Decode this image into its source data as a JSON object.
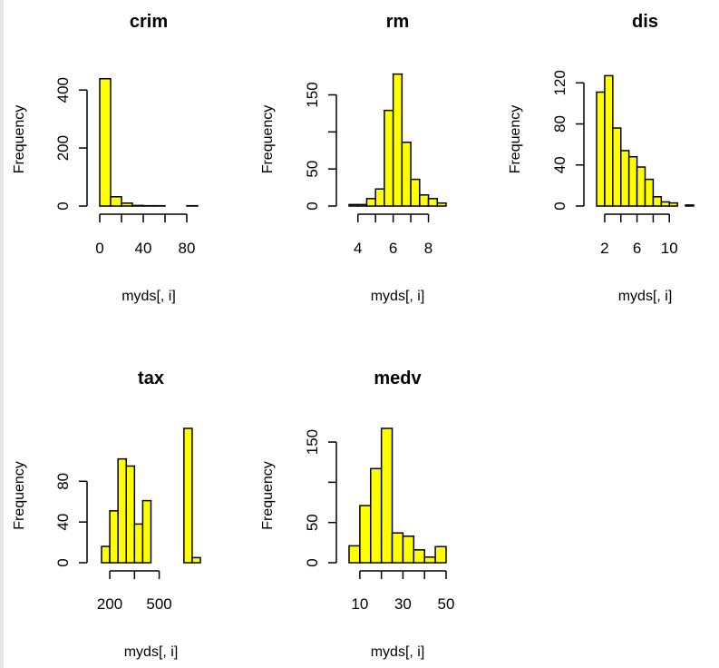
{
  "chart_data": [
    {
      "type": "bar",
      "title": "crim",
      "xlabel": "myds[, i]",
      "ylabel": "Frequency",
      "bin_edges": [
        0,
        10,
        20,
        30,
        40,
        50,
        60,
        70,
        80,
        90
      ],
      "values": [
        439,
        32,
        10,
        2,
        1,
        1,
        0,
        0,
        1
      ],
      "xticks": [
        0,
        40,
        80
      ],
      "yticks": [
        0,
        200,
        400
      ],
      "xlim": [
        0,
        90
      ],
      "ylim": [
        0,
        460
      ],
      "fill": "#ffff00"
    },
    {
      "type": "bar",
      "title": "rm",
      "xlabel": "myds[, i]",
      "ylabel": "Frequency",
      "bin_edges": [
        3.5,
        4,
        4.5,
        5,
        5.5,
        6,
        6.5,
        7,
        7.5,
        8,
        8.5,
        9
      ],
      "values": [
        2,
        2,
        10,
        23,
        129,
        178,
        86,
        36,
        15,
        10,
        4
      ],
      "xticks": [
        4,
        6,
        8
      ],
      "yticks": [
        0,
        50,
        150
      ],
      "xlim": [
        3.5,
        9
      ],
      "ylim": [
        0,
        180
      ],
      "fill": "#ffff00"
    },
    {
      "type": "bar",
      "title": "dis",
      "xlabel": "myds[, i]",
      "ylabel": "Frequency",
      "bin_edges": [
        1,
        2,
        3,
        4,
        5,
        6,
        7,
        8,
        9,
        10,
        11,
        12,
        13
      ],
      "values": [
        111,
        127,
        76,
        54,
        48,
        38,
        26,
        9,
        4,
        3,
        0,
        1
      ],
      "xticks": [
        2,
        6,
        10
      ],
      "yticks": [
        0,
        40,
        80,
        120
      ],
      "xlim": [
        1,
        13
      ],
      "ylim": [
        0,
        130
      ],
      "fill": "#ffff00"
    },
    {
      "type": "bar",
      "title": "tax",
      "xlabel": "myds[, i]",
      "ylabel": "Frequency",
      "bin_edges": [
        150,
        200,
        250,
        300,
        350,
        400,
        450,
        500,
        550,
        600,
        650,
        700,
        750
      ],
      "values": [
        16,
        51,
        102,
        95,
        38,
        61,
        0,
        0,
        0,
        0,
        132,
        5
      ],
      "xticks": [
        200,
        500
      ],
      "yticks": [
        0,
        40,
        80
      ],
      "xlim": [
        150,
        750
      ],
      "ylim": [
        0,
        132
      ],
      "fill": "#ffff00"
    },
    {
      "type": "bar",
      "title": "medv",
      "xlabel": "myds[, i]",
      "ylabel": "Frequency",
      "bin_edges": [
        5,
        10,
        15,
        20,
        25,
        30,
        35,
        40,
        45,
        50
      ],
      "values": [
        21,
        71,
        117,
        167,
        37,
        33,
        16,
        7,
        20
      ],
      "xticks": [
        10,
        30,
        50
      ],
      "yticks": [
        0,
        50,
        150
      ],
      "xlim": [
        5,
        50
      ],
      "ylim": [
        0,
        167
      ],
      "fill": "#ffff00"
    }
  ]
}
